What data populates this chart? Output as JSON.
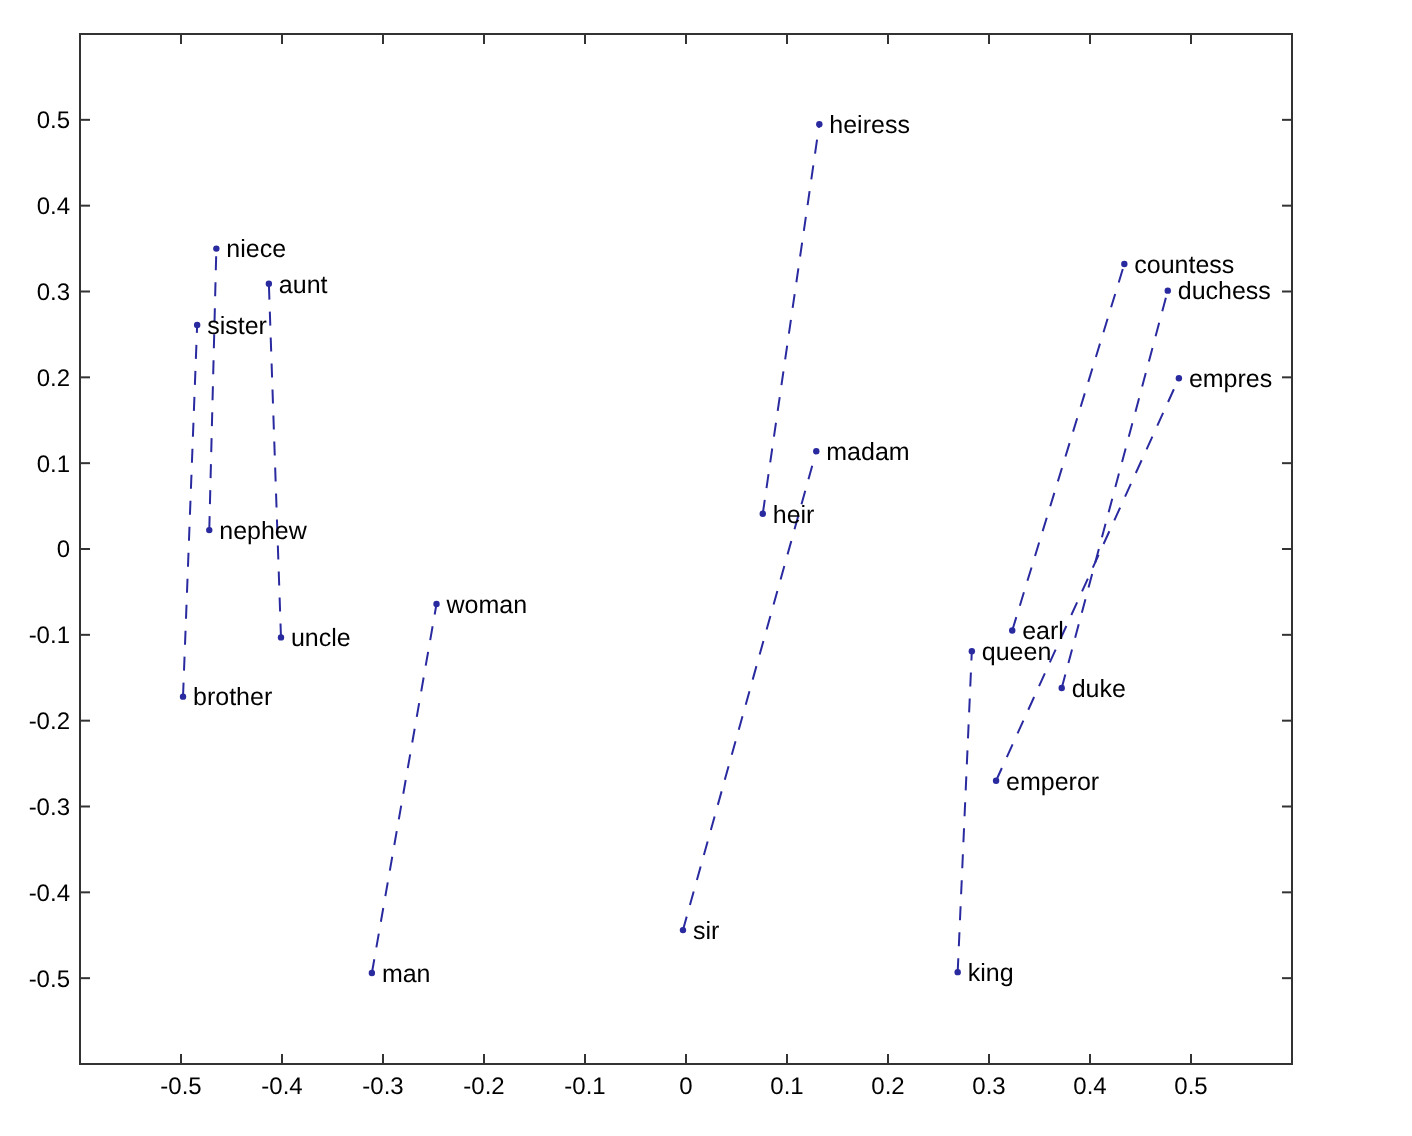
{
  "chart_data": {
    "type": "line",
    "line_style": "dashed",
    "marker": "circle",
    "grid": false,
    "xlim": [
      -0.6,
      0.6
    ],
    "ylim": [
      -0.6,
      0.6
    ],
    "xticks": [
      -0.5,
      -0.4,
      -0.3,
      -0.2,
      -0.1,
      0,
      0.1,
      0.2,
      0.3,
      0.4,
      0.5
    ],
    "yticks": [
      -0.5,
      -0.4,
      -0.3,
      -0.2,
      -0.1,
      0,
      0.1,
      0.2,
      0.3,
      0.4,
      0.5
    ],
    "series": [
      {
        "color": "#2a2aa0",
        "x": [
          -0.498,
          -0.484
        ],
        "values": [
          -0.172,
          0.261
        ]
      },
      {
        "color": "#2a2aa0",
        "x": [
          -0.472,
          -0.465
        ],
        "values": [
          0.022,
          0.35
        ]
      },
      {
        "color": "#2a2aa0",
        "x": [
          -0.401,
          -0.413
        ],
        "values": [
          -0.103,
          0.309
        ]
      },
      {
        "color": "#2a2aa0",
        "x": [
          -0.311,
          -0.247
        ],
        "values": [
          -0.494,
          -0.064
        ]
      },
      {
        "color": "#2a2aa0",
        "x": [
          -0.003,
          0.129
        ],
        "values": [
          -0.444,
          0.114
        ]
      },
      {
        "color": "#2a2aa0",
        "x": [
          0.076,
          0.132
        ],
        "values": [
          0.041,
          0.495
        ]
      },
      {
        "color": "#2a2aa0",
        "x": [
          0.269,
          0.283
        ],
        "values": [
          -0.493,
          -0.119
        ]
      },
      {
        "color": "#2a2aa0",
        "x": [
          0.323,
          0.434
        ],
        "values": [
          -0.095,
          0.332
        ]
      },
      {
        "color": "#2a2aa0",
        "x": [
          0.372,
          0.477
        ],
        "values": [
          -0.162,
          0.301
        ]
      },
      {
        "color": "#2a2aa0",
        "x": [
          0.307,
          0.488
        ],
        "values": [
          -0.27,
          0.199
        ]
      }
    ],
    "annotations": [
      {
        "text": "brother",
        "x": -0.498,
        "y": -0.172
      },
      {
        "text": "sister",
        "x": -0.484,
        "y": 0.261
      },
      {
        "text": "nephew",
        "x": -0.472,
        "y": 0.022
      },
      {
        "text": "niece",
        "x": -0.465,
        "y": 0.35
      },
      {
        "text": "uncle",
        "x": -0.401,
        "y": -0.103
      },
      {
        "text": "aunt",
        "x": -0.413,
        "y": 0.309
      },
      {
        "text": "man",
        "x": -0.311,
        "y": -0.494
      },
      {
        "text": "woman",
        "x": -0.247,
        "y": -0.064
      },
      {
        "text": "sir",
        "x": -0.003,
        "y": -0.444
      },
      {
        "text": "madam",
        "x": 0.129,
        "y": 0.114
      },
      {
        "text": "heir",
        "x": 0.076,
        "y": 0.041
      },
      {
        "text": "heiress",
        "x": 0.132,
        "y": 0.495
      },
      {
        "text": "king",
        "x": 0.269,
        "y": -0.493
      },
      {
        "text": "queen",
        "x": 0.283,
        "y": -0.119
      },
      {
        "text": "earl",
        "x": 0.323,
        "y": -0.095
      },
      {
        "text": "countess",
        "x": 0.434,
        "y": 0.332
      },
      {
        "text": "duke",
        "x": 0.372,
        "y": -0.162
      },
      {
        "text": "duchess",
        "x": 0.477,
        "y": 0.301
      },
      {
        "text": "emperor",
        "x": 0.307,
        "y": -0.27
      },
      {
        "text": "empres",
        "x": 0.488,
        "y": 0.199
      }
    ]
  }
}
